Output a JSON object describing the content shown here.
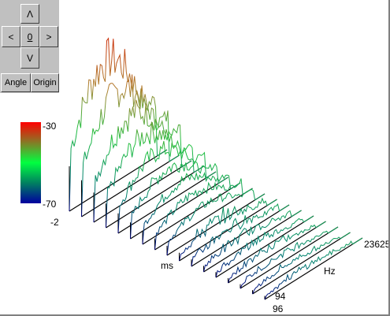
{
  "controls": {
    "up": "Λ",
    "left": "<",
    "center": "0",
    "right": ">",
    "down": "V",
    "angle": "Angle",
    "origin": "Origin"
  },
  "colorbar": {
    "max": "-30",
    "min": "-70"
  },
  "axes": {
    "time_start": "-2",
    "time_label": "ms",
    "freq_end": "23625",
    "freq_label": "Hz",
    "slice_a": "94",
    "slice_b": "96"
  }
}
